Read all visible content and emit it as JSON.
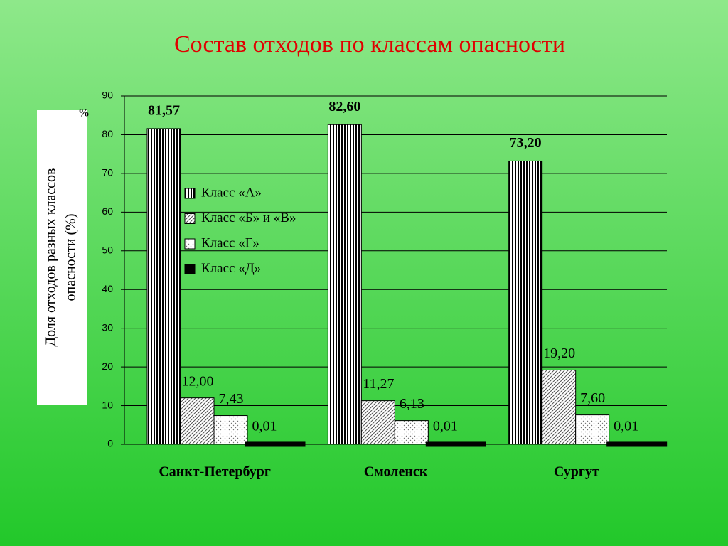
{
  "chart_data": {
    "type": "bar",
    "title": "Состав отходов по классам опасности",
    "ylabel": [
      "Доля отходов разных классов",
      "опасности (%)"
    ],
    "unit": "%",
    "categories": [
      "Санкт-Петербург",
      "Смоленск",
      "Сургут"
    ],
    "series": [
      {
        "name": "Класс «А»",
        "values": [
          81.57,
          82.6,
          73.2
        ],
        "value_labels": [
          "81,57",
          "82,60",
          "73,20"
        ]
      },
      {
        "name": "Класс «Б» и «В»",
        "values": [
          12.0,
          11.27,
          19.2
        ],
        "value_labels": [
          "12,00",
          "11,27",
          "19,20"
        ]
      },
      {
        "name": "Класс «Г»",
        "values": [
          7.43,
          6.13,
          7.6
        ],
        "value_labels": [
          "7,43",
          "6,13",
          "7,60"
        ]
      },
      {
        "name": "Класс «Д»",
        "values": [
          0.01,
          0.01,
          0.01
        ],
        "value_labels": [
          "0,01",
          "0,01",
          "0,01"
        ]
      }
    ],
    "ylim": [
      0,
      90
    ],
    "yticks": [
      0,
      10,
      20,
      30,
      40,
      50,
      60,
      70,
      80,
      90
    ],
    "grid": true
  }
}
